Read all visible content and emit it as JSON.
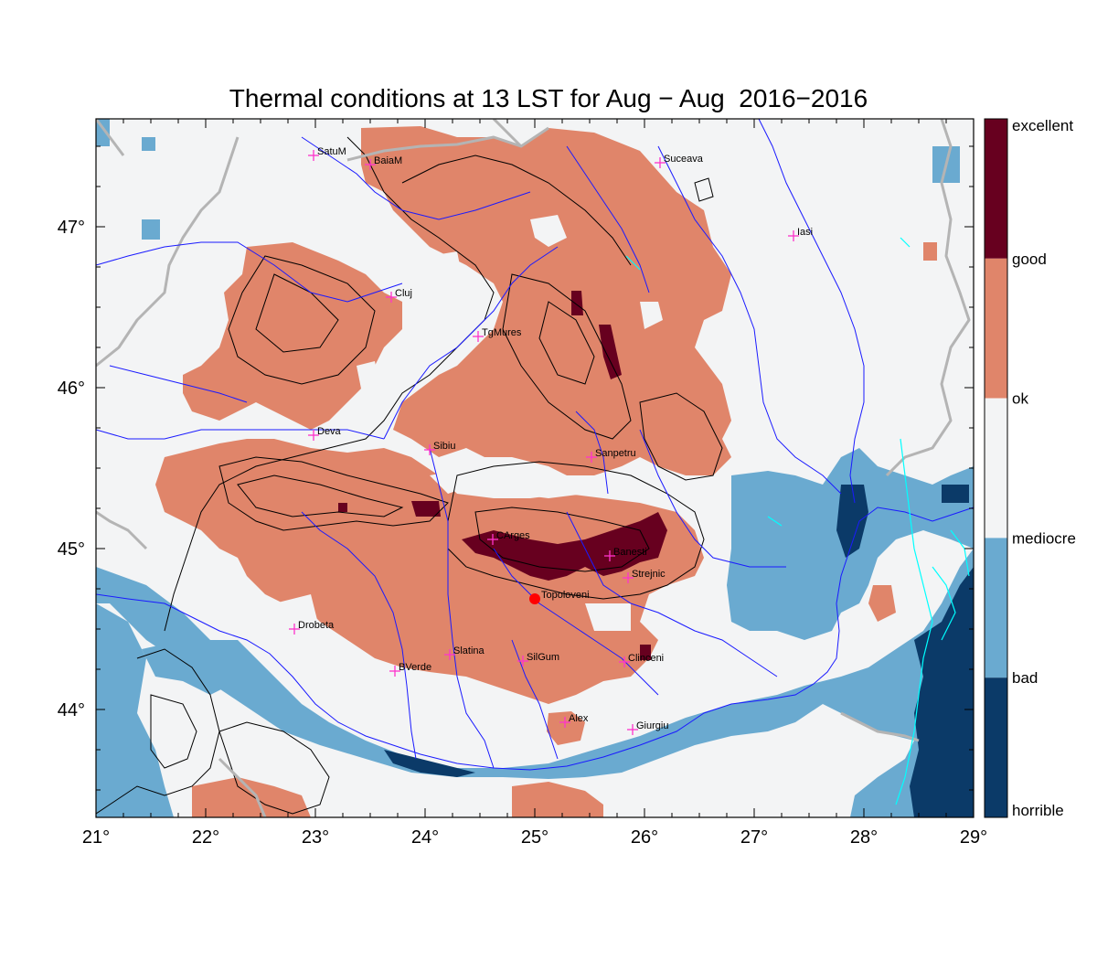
{
  "title": "Thermal conditions at 13 LST for Aug − Aug  2016−2016",
  "colors": {
    "excellent": "#67001f",
    "good": "#e0856a",
    "ok": "#f3f4f5",
    "mediocre": "#6aaad0",
    "bad": "#0b3a68",
    "rivers": "#1a1aff",
    "borders": "#b4b4b4",
    "cities": "#ff33cc",
    "marker": "#ff0000",
    "lakes": "#00ffff"
  },
  "legend": {
    "labels": [
      "excellent",
      "good",
      "ok",
      "mediocre",
      "bad",
      "horrible"
    ]
  },
  "axes": {
    "x_ticks": [
      "21°",
      "22°",
      "23°",
      "24°",
      "25°",
      "26°",
      "27°",
      "28°",
      "29°"
    ],
    "y_ticks": [
      "47°",
      "46°",
      "45°",
      "44°"
    ]
  },
  "cities": [
    "SatuM",
    "BaiaM",
    "Suceava",
    "Iasi",
    "Cluj",
    "TgMures",
    "Deva",
    "Sibiu",
    "Sanpetru",
    "CArges",
    "Banesti",
    "Strejnic",
    "Topoloveni",
    "Drobeta",
    "Slatina",
    "SilGum",
    "Clinceni",
    "BVerde",
    "Alex",
    "Giurgiu"
  ]
}
